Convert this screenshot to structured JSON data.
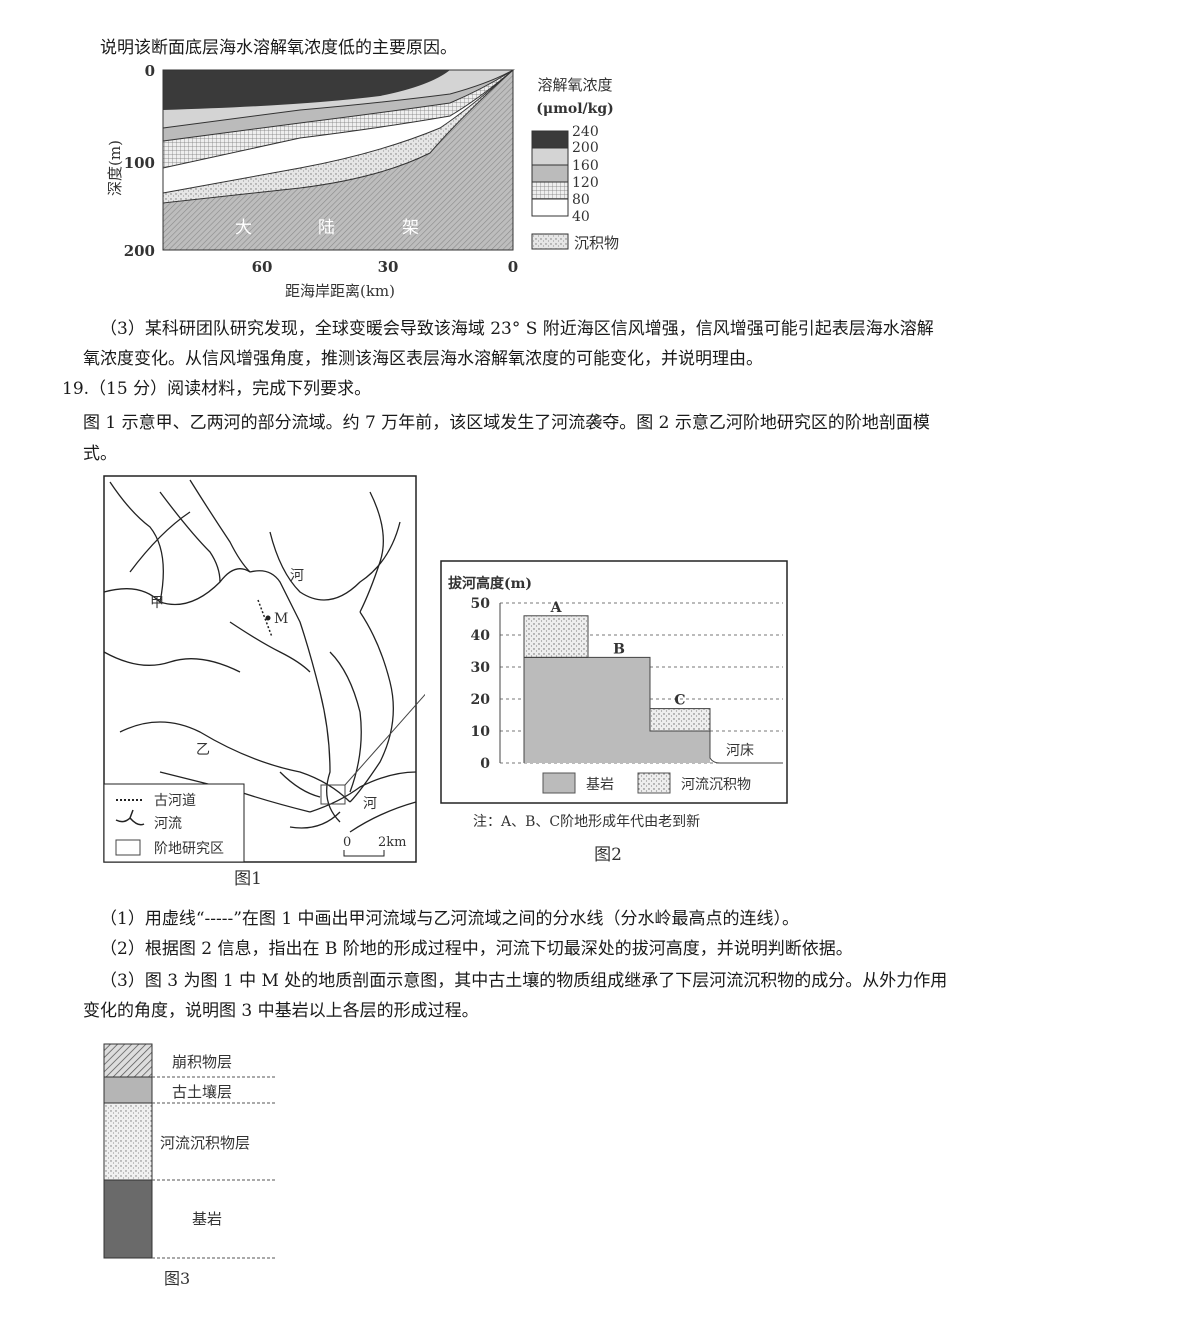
{
  "text": {
    "q18_2_tail": "说明该断面底层海水溶解氧浓度低的主要原因。",
    "q18_3_a": "（3）某科研团队研究发现，全球变暖会导致该海域 23° S 附近海区信风增强，信风增强可能引起表层海水溶解",
    "q18_3_b": "氧浓度变化。从信风增强角度，推测该海区表层海水溶解氧浓度的可能变化，并说明理由。",
    "q19_head": "19.（15 分）阅读材料，完成下列要求。",
    "q19_mat_a": "图 1 示意甲、乙两河的部分流域。约 7 万年前，该区域发生了河流袭夺。图 2 示意乙河阶地研究区的阶地剖面模",
    "q19_mat_b": "式。",
    "q19_1": "（1）用虚线“-----”在图 1 中画出甲河流域与乙河流域之间的分水线（分水岭最高点的连线）。",
    "q19_2": "（2）根据图 2 信息，指出在 B 阶地的形成过程中，河流下切最深处的拔河高度，并说明判断依据。",
    "q19_3_a": "（3）图 3 为图 1 中 M 处的地质剖面示意图，其中古土壤的物质组成继承了下层河流沉积物的成分。从外力作用",
    "q19_3_b": "变化的角度，说明图 3 中基岩以上各层的形成过程。"
  },
  "oxygen_chart": {
    "ylabel": "深度(m)",
    "xlabel": "距海岸距离(km)",
    "y_ticks": [
      "0",
      "100",
      "200"
    ],
    "x_ticks": [
      "60",
      "30",
      "0"
    ],
    "shelf_label": [
      "大",
      "陆",
      "架"
    ],
    "legend_title": "溶解氧浓度",
    "legend_unit": "(μmol/kg)",
    "legend_levels": [
      "240",
      "200",
      "160",
      "120",
      "80",
      "40"
    ],
    "legend_sediment": "沉积物"
  },
  "figure1": {
    "caption": "图1",
    "labels": {
      "jia": "甲",
      "yi": "乙",
      "he1": "河",
      "he2": "河",
      "m": "M"
    },
    "legend": {
      "ancient_channel": "古河道",
      "river": "河流",
      "study_area": "阶地研究区"
    },
    "scale": {
      "zero": "0",
      "dist": "2km"
    }
  },
  "figure2": {
    "caption": "图2",
    "ylabel": "拔河高度(m)",
    "y_ticks": [
      "0",
      "10",
      "20",
      "30",
      "40",
      "50"
    ],
    "terraces": [
      {
        "name": "A",
        "bedrock_top": 33,
        "sediment_top": 46
      },
      {
        "name": "B",
        "bedrock_top": 33,
        "sediment_top": 33
      },
      {
        "name": "C",
        "bedrock_top": 10,
        "sediment_top": 17
      }
    ],
    "riverbed": "河床",
    "legend": {
      "bedrock": "基岩",
      "sediment": "河流沉积物"
    },
    "note": "注：A、B、C阶地形成年代由老到新"
  },
  "figure3": {
    "caption": "图3",
    "layers": [
      "崩积物层",
      "古土壤层",
      "河流沉积物层",
      "基岩"
    ]
  }
}
